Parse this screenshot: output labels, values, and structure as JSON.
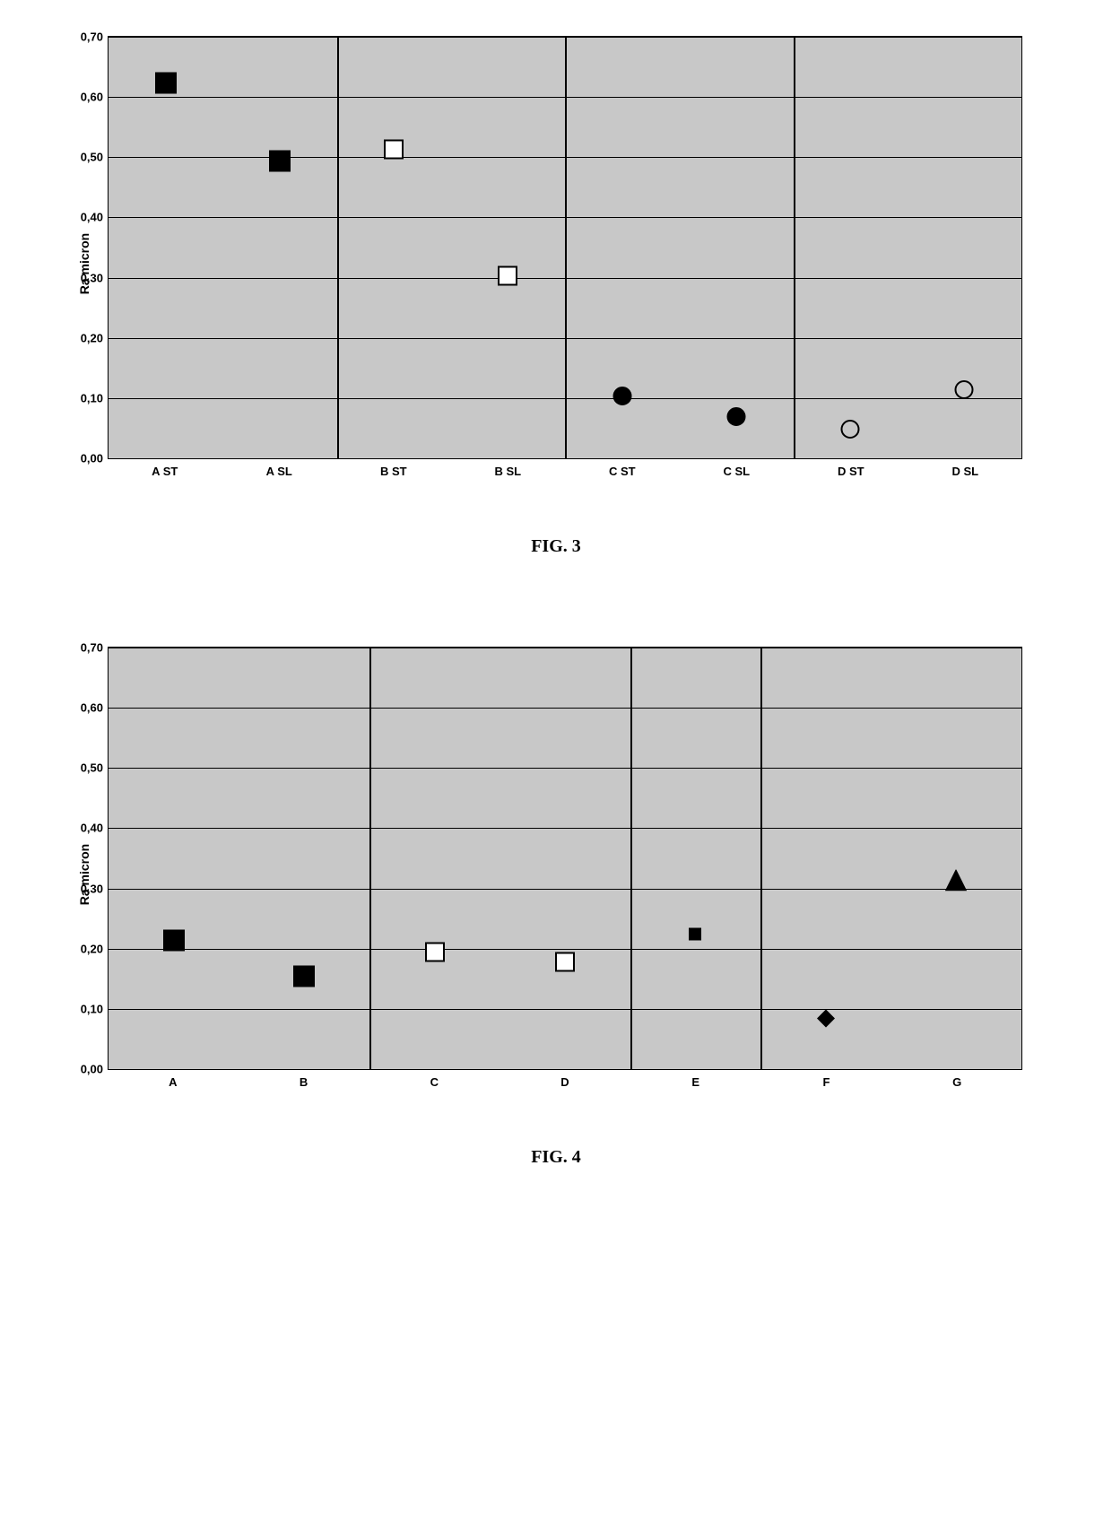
{
  "page": {
    "background_color": "#ffffff"
  },
  "fig3": {
    "caption": "FIG. 3",
    "ylabel": "Ra   micron",
    "type": "scatter",
    "plot_background": "#c8c8c8",
    "grid_color": "#000000",
    "ylim": [
      0.0,
      0.7
    ],
    "yticks": [
      0.0,
      0.1,
      0.2,
      0.3,
      0.4,
      0.5,
      0.6,
      0.7
    ],
    "ytick_labels": [
      "0,00",
      "0,10",
      "0,20",
      "0,30",
      "0,40",
      "0,50",
      "0,60",
      "0,70"
    ],
    "label_fontsize": 13,
    "categories": [
      "A ST",
      "A SL",
      "B ST",
      "B SL",
      "C ST",
      "C SL",
      "D ST",
      "D SL"
    ],
    "vlines_after_index": [
      1,
      3,
      5
    ],
    "points": [
      {
        "x_index": 0,
        "y": 0.62,
        "shape": "square-filled",
        "size": 24,
        "fill": "#000000",
        "stroke": "#000000"
      },
      {
        "x_index": 1,
        "y": 0.49,
        "shape": "square-filled",
        "size": 24,
        "fill": "#000000",
        "stroke": "#000000"
      },
      {
        "x_index": 2,
        "y": 0.51,
        "shape": "square-open",
        "size": 22,
        "fill": "#ffffff",
        "stroke": "#000000"
      },
      {
        "x_index": 3,
        "y": 0.3,
        "shape": "square-open",
        "size": 22,
        "fill": "#ffffff",
        "stroke": "#000000"
      },
      {
        "x_index": 4,
        "y": 0.1,
        "shape": "circle-filled",
        "size": 22,
        "fill": "#000000",
        "stroke": "#000000"
      },
      {
        "x_index": 5,
        "y": 0.065,
        "shape": "circle-filled",
        "size": 22,
        "fill": "#000000",
        "stroke": "#000000"
      },
      {
        "x_index": 6,
        "y": 0.045,
        "shape": "circle-open",
        "size": 22,
        "fill": "none",
        "stroke": "#000000"
      },
      {
        "x_index": 7,
        "y": 0.11,
        "shape": "circle-open",
        "size": 22,
        "fill": "none",
        "stroke": "#000000"
      }
    ]
  },
  "fig4": {
    "caption": "FIG. 4",
    "ylabel": "Ra   micron",
    "type": "scatter",
    "plot_background": "#c8c8c8",
    "grid_color": "#000000",
    "ylim": [
      0.0,
      0.7
    ],
    "yticks": [
      0.0,
      0.1,
      0.2,
      0.3,
      0.4,
      0.5,
      0.6,
      0.7
    ],
    "ytick_labels": [
      "0,00",
      "0,10",
      "0,20",
      "0,30",
      "0,40",
      "0,50",
      "0,60",
      "0,70"
    ],
    "label_fontsize": 13,
    "categories": [
      "A",
      "B",
      "C",
      "D",
      "E",
      "F",
      "G"
    ],
    "vlines_after_index": [
      1,
      3,
      4
    ],
    "points": [
      {
        "x_index": 0,
        "y": 0.21,
        "shape": "square-filled",
        "size": 24,
        "fill": "#000000",
        "stroke": "#000000"
      },
      {
        "x_index": 1,
        "y": 0.15,
        "shape": "square-filled",
        "size": 24,
        "fill": "#000000",
        "stroke": "#000000"
      },
      {
        "x_index": 2,
        "y": 0.19,
        "shape": "square-open",
        "size": 22,
        "fill": "#ffffff",
        "stroke": "#000000"
      },
      {
        "x_index": 3,
        "y": 0.175,
        "shape": "square-open",
        "size": 22,
        "fill": "#ffffff",
        "stroke": "#000000"
      },
      {
        "x_index": 4,
        "y": 0.22,
        "shape": "square-filled",
        "size": 14,
        "fill": "#000000",
        "stroke": "#000000"
      },
      {
        "x_index": 5,
        "y": 0.08,
        "shape": "diamond-filled",
        "size": 20,
        "fill": "#000000",
        "stroke": "#000000"
      },
      {
        "x_index": 6,
        "y": 0.31,
        "shape": "triangle-filled",
        "size": 24,
        "fill": "#000000",
        "stroke": "#000000"
      }
    ]
  }
}
